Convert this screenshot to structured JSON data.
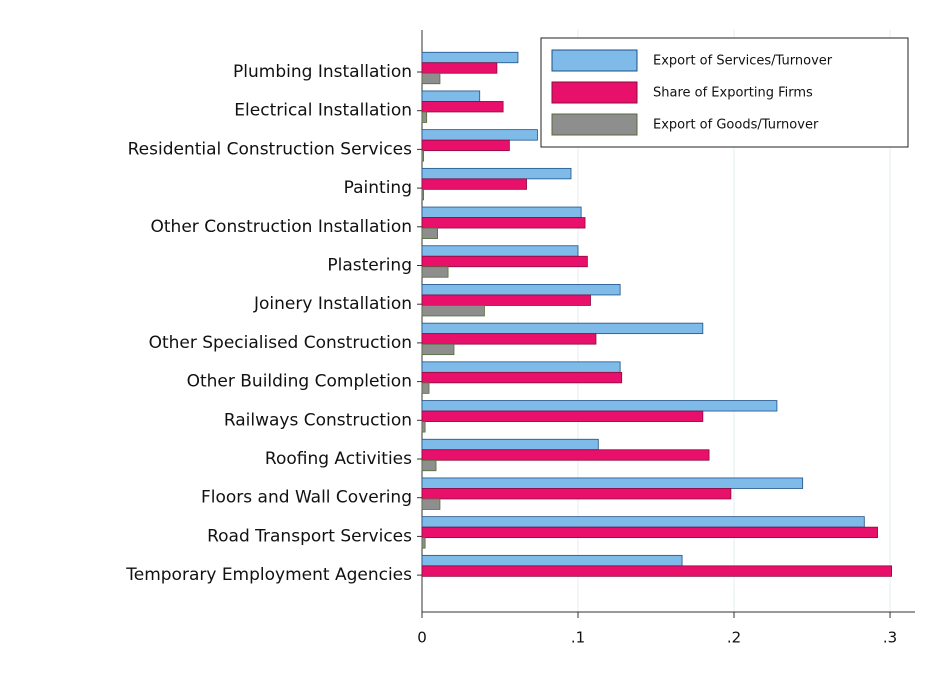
{
  "chart_data": {
    "type": "hbar",
    "categories": [
      "Plumbing Installation",
      "Electrical Installation",
      "Residential Construction Services",
      "Painting",
      "Other Construction Installation",
      "Plastering",
      "Joinery Installation",
      "Other Specialised Construction",
      "Other Building Completion",
      "Railways Construction",
      "Roofing Activities",
      "Floors and Wall Covering",
      "Road Transport Services",
      "Temporary Employment Agencies"
    ],
    "series": [
      {
        "name": "Export of Services/Turnover",
        "color": "#7fbbe9",
        "values": [
          0.0615,
          0.037,
          0.074,
          0.0955,
          0.102,
          0.1,
          0.127,
          0.18,
          0.127,
          0.2275,
          0.113,
          0.244,
          0.2835,
          0.1667
        ]
      },
      {
        "name": "Share of Exporting Firms",
        "color": "#e8106b",
        "values": [
          0.048,
          0.052,
          0.056,
          0.067,
          0.1045,
          0.106,
          0.108,
          0.1115,
          0.128,
          0.18,
          0.184,
          0.198,
          0.292,
          0.301
        ]
      },
      {
        "name": "Export of Goods/Turnover",
        "color": "#8e8e8e",
        "values": [
          0.0115,
          0.003,
          0.001,
          0.001,
          0.01,
          0.0167,
          0.04,
          0.0205,
          0.0045,
          0.002,
          0.009,
          0.0115,
          0.002,
          0
        ]
      }
    ],
    "xlim": [
      0,
      0.316
    ],
    "xticks": [
      0,
      {
        "value": 0.1,
        "label": ".1"
      },
      {
        "value": 0.2,
        "label": ".2"
      },
      {
        "value": 0.3,
        "label": ".3"
      }
    ],
    "grid": true,
    "legend": "top-right"
  }
}
